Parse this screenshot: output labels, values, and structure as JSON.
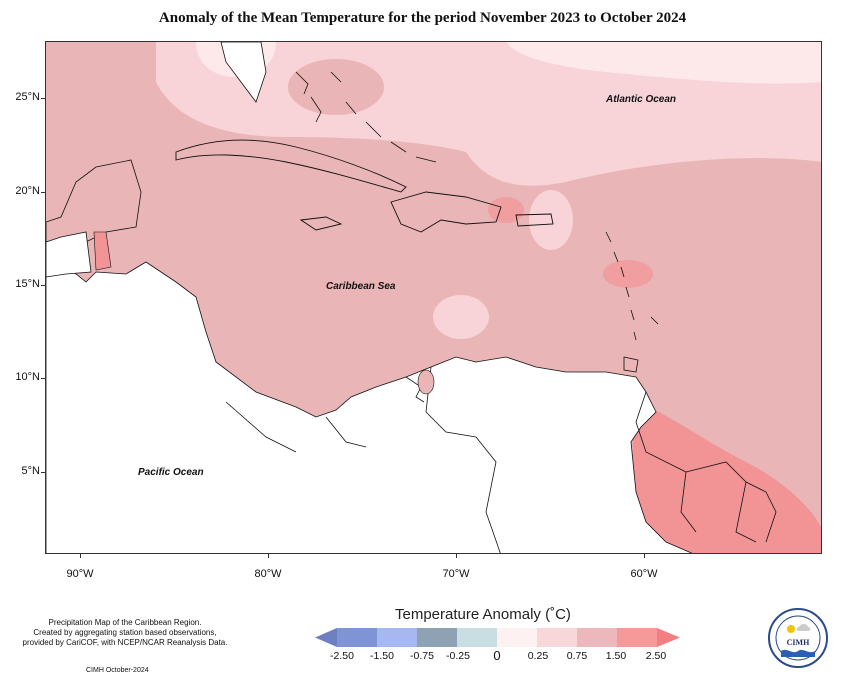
{
  "title": "Anomaly of the Mean Temperature for the period November 2023 to October 2024",
  "map": {
    "latitude_labels": [
      "25°N",
      "20°N",
      "15°N",
      "10°N",
      "5°N"
    ],
    "longitude_labels": [
      "90°W",
      "80°W",
      "70°W",
      "60°W"
    ],
    "region_labels": {
      "atlantic": "Atlantic Ocean",
      "caribbean": "Caribbean Sea",
      "pacific": "Pacific Ocean"
    },
    "colors": {
      "land": "#ffffff",
      "band_0_25": "#fde8ea",
      "band_0_75": "#f8d3d7",
      "band_1_50": "#e9b5b6",
      "band_2_50": "#f29496"
    }
  },
  "legend": {
    "title": "Temperature Anomaly (˚C)",
    "labels": [
      "-2.50",
      "-1.50",
      "-0.75",
      "-0.25",
      "0",
      "0.25",
      "0.75",
      "1.50",
      "2.50"
    ],
    "colors": [
      "#6e80c2",
      "#8fa3e6",
      "#a8b9f5",
      "#8fa2b4",
      "#c9dde3",
      "#fdf1f1",
      "#f8d7da",
      "#ecb8bb",
      "#f6999b"
    ]
  },
  "footnote": {
    "line1": "Precipitation Map of the Caribbean Region.",
    "line2": "Created by aggregating station based observations,",
    "line3": "provided by CariCOF, with NCEP/NCAR Reanalysis Data.",
    "credit": "CIMH October-2024"
  },
  "logo": {
    "text": "CIMH"
  }
}
